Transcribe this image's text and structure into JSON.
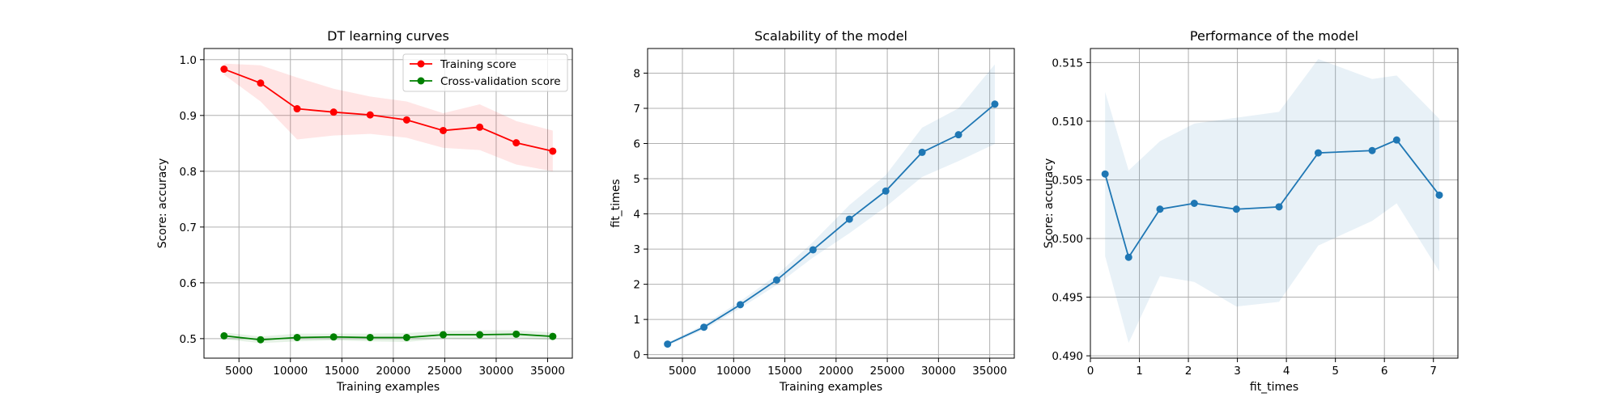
{
  "chart_data": [
    {
      "type": "line",
      "title": "DT learning curves",
      "xlabel": "Training examples",
      "ylabel": "Score: accuracy",
      "xlim": [
        1600,
        37400
      ],
      "ylim": [
        0.465,
        1.02
      ],
      "xticks": [
        5000,
        10000,
        15000,
        20000,
        25000,
        30000,
        35000
      ],
      "yticks": [
        0.5,
        0.6,
        0.7,
        0.8,
        0.9,
        1.0
      ],
      "grid": true,
      "legend_position": "upper right",
      "x": [
        3550,
        7100,
        10650,
        14200,
        17750,
        21300,
        24850,
        28400,
        31950,
        35500
      ],
      "series": [
        {
          "name": "Training score",
          "color": "#ff0000",
          "fill_color": "#ff0000",
          "values": [
            0.983,
            0.958,
            0.912,
            0.906,
            0.901,
            0.892,
            0.873,
            0.879,
            0.851,
            0.836
          ],
          "band_upper": [
            0.993,
            0.99,
            0.968,
            0.948,
            0.934,
            0.925,
            0.904,
            0.92,
            0.89,
            0.873
          ],
          "band_lower": [
            0.973,
            0.925,
            0.857,
            0.864,
            0.867,
            0.86,
            0.842,
            0.838,
            0.812,
            0.8
          ]
        },
        {
          "name": "Cross-validation score",
          "color": "#008000",
          "fill_color": "#008000",
          "values": [
            0.505,
            0.498,
            0.502,
            0.503,
            0.502,
            0.502,
            0.507,
            0.507,
            0.508,
            0.504
          ],
          "band_upper": [
            0.511,
            0.504,
            0.509,
            0.509,
            0.509,
            0.51,
            0.514,
            0.515,
            0.515,
            0.511
          ],
          "band_lower": [
            0.499,
            0.492,
            0.495,
            0.497,
            0.495,
            0.494,
            0.5,
            0.499,
            0.501,
            0.497
          ]
        }
      ]
    },
    {
      "type": "line",
      "title": "Scalability of the model",
      "xlabel": "Training examples",
      "ylabel": "fit_times",
      "xlim": [
        1600,
        37400
      ],
      "ylim": [
        -0.1,
        8.7
      ],
      "xticks": [
        5000,
        10000,
        15000,
        20000,
        25000,
        30000,
        35000
      ],
      "yticks": [
        0,
        1,
        2,
        3,
        4,
        5,
        6,
        7,
        8
      ],
      "grid": true,
      "series": [
        {
          "name": "",
          "color": "#1f77b4",
          "fill_color": "#1f77b4",
          "x": [
            3550,
            7100,
            10650,
            14200,
            17750,
            21300,
            24850,
            28400,
            31950,
            35500
          ],
          "values": [
            0.3,
            0.78,
            1.42,
            2.12,
            2.98,
            3.85,
            4.65,
            5.75,
            6.25,
            7.12
          ],
          "band_upper": [
            0.34,
            0.85,
            1.52,
            2.26,
            3.2,
            4.25,
            5.1,
            6.45,
            7.0,
            8.25
          ],
          "band_lower": [
            0.26,
            0.71,
            1.32,
            1.98,
            2.76,
            3.45,
            4.2,
            5.05,
            5.5,
            5.99
          ]
        }
      ]
    },
    {
      "type": "line",
      "title": "Performance of the model",
      "xlabel": "fit_times",
      "ylabel": "Score: accuracy",
      "xlim": [
        0,
        7.5
      ],
      "ylim": [
        0.4898,
        0.5162
      ],
      "xticks": [
        0,
        1,
        2,
        3,
        4,
        5,
        6,
        7
      ],
      "yticks": [
        0.49,
        0.495,
        0.5,
        0.505,
        0.51,
        0.515
      ],
      "ytick_labels": [
        "0.490",
        "0.495",
        "0.500",
        "0.505",
        "0.510",
        "0.515"
      ],
      "grid": true,
      "series": [
        {
          "name": "",
          "color": "#1f77b4",
          "fill_color": "#1f77b4",
          "x": [
            0.3,
            0.78,
            1.42,
            2.12,
            2.98,
            3.85,
            4.65,
            5.75,
            6.25,
            7.12
          ],
          "values": [
            0.5055,
            0.4984,
            0.5025,
            0.503,
            0.5025,
            0.5027,
            0.5073,
            0.5075,
            0.5084,
            0.5037
          ],
          "band_upper": [
            0.5125,
            0.5058,
            0.5083,
            0.5098,
            0.5103,
            0.5108,
            0.5153,
            0.5136,
            0.5139,
            0.5102
          ],
          "band_lower": [
            0.4985,
            0.4911,
            0.4968,
            0.4963,
            0.4942,
            0.4946,
            0.4994,
            0.5015,
            0.503,
            0.4972
          ]
        }
      ]
    }
  ]
}
